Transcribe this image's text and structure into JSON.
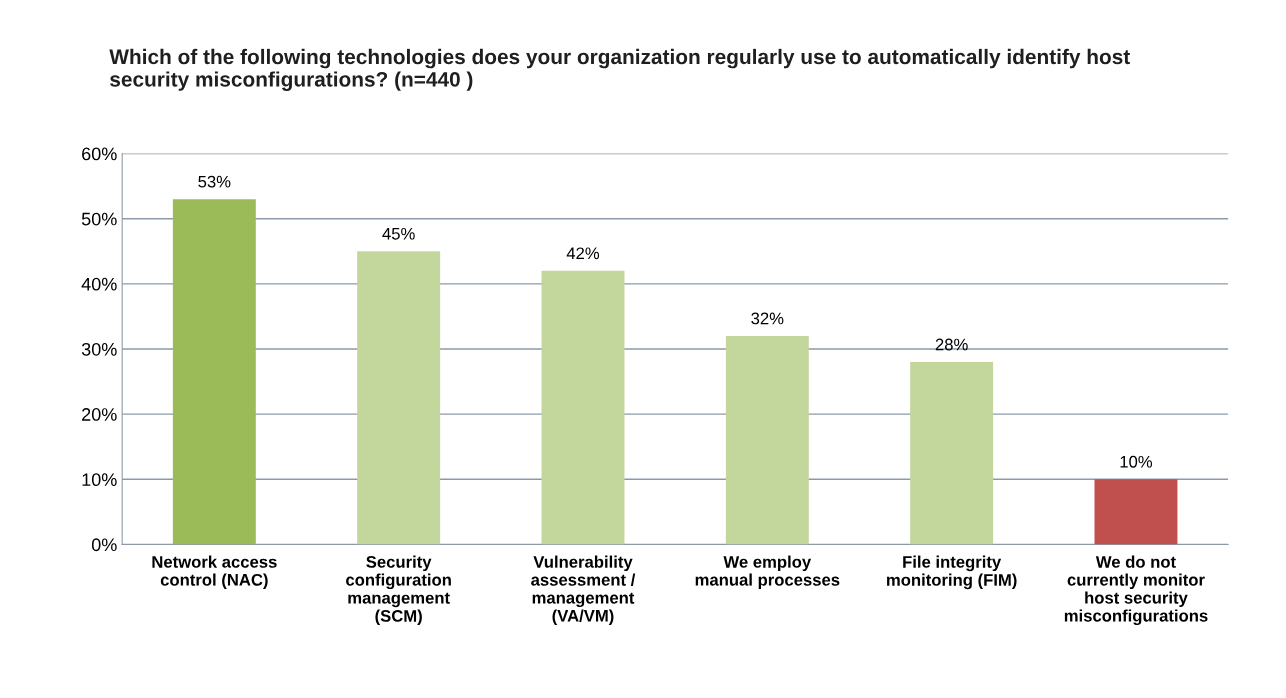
{
  "chart_data": {
    "type": "bar",
    "title": "Which of the following technologies does your organization regularly use to automatically identify host\nsecurity misconfigurations? (n=440 )",
    "categories": [
      "Network access\ncontrol (NAC)",
      "Security\nconfiguration\nmanagement\n(SCM)",
      "Vulnerability\nassessment /\nmanagement\n(VA/VM)",
      "We employ\nmanual processes",
      "File integrity\nmonitoring (FIM)",
      "We do not\ncurrently monitor\nhost security\nmisconfigurations"
    ],
    "values": [
      53,
      45,
      42,
      32,
      28,
      10
    ],
    "value_labels": [
      "53%",
      "45%",
      "42%",
      "32%",
      "28%",
      "10%"
    ],
    "colors": [
      "#9bbb59",
      "#c3d69b",
      "#c3d69b",
      "#c3d69b",
      "#c3d69b",
      "#c0504d"
    ],
    "ylim": [
      0,
      60
    ],
    "yticks": [
      {
        "value": 0,
        "label": "0%"
      },
      {
        "value": 10,
        "label": "10%"
      },
      {
        "value": 20,
        "label": "20%"
      },
      {
        "value": 30,
        "label": "30%"
      },
      {
        "value": 40,
        "label": "40%"
      },
      {
        "value": 50,
        "label": "50%"
      },
      {
        "value": 60,
        "label": "60%"
      }
    ],
    "grid": "y",
    "legend": false
  }
}
